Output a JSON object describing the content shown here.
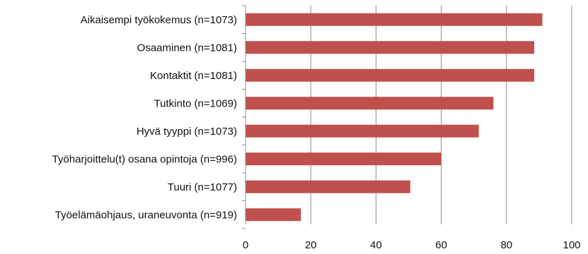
{
  "chart_data": {
    "type": "bar",
    "orientation": "horizontal",
    "categories": [
      "Aikaisempi työkokemus (n=1073)",
      "Osaaminen (n=1081)",
      "Kontaktit (n=1081)",
      "Tutkinto (n=1069)",
      "Hyvä tyyppi (n=1073)",
      "Työharjoittelu(t) osana opintoja (n=996)",
      "Tuuri (n=1077)",
      "Työelämäohjaus, uraneuvonta (n=919)"
    ],
    "values": [
      91,
      88.5,
      88.5,
      76,
      71.5,
      60,
      50.5,
      17
    ],
    "xlim": [
      0,
      100
    ],
    "xticks": [
      0,
      20,
      40,
      60,
      80,
      100
    ],
    "grid": true,
    "colors": {
      "bar": "#c0504d",
      "grid": "#8c8c8c",
      "axis": "#8c8c8c"
    }
  }
}
